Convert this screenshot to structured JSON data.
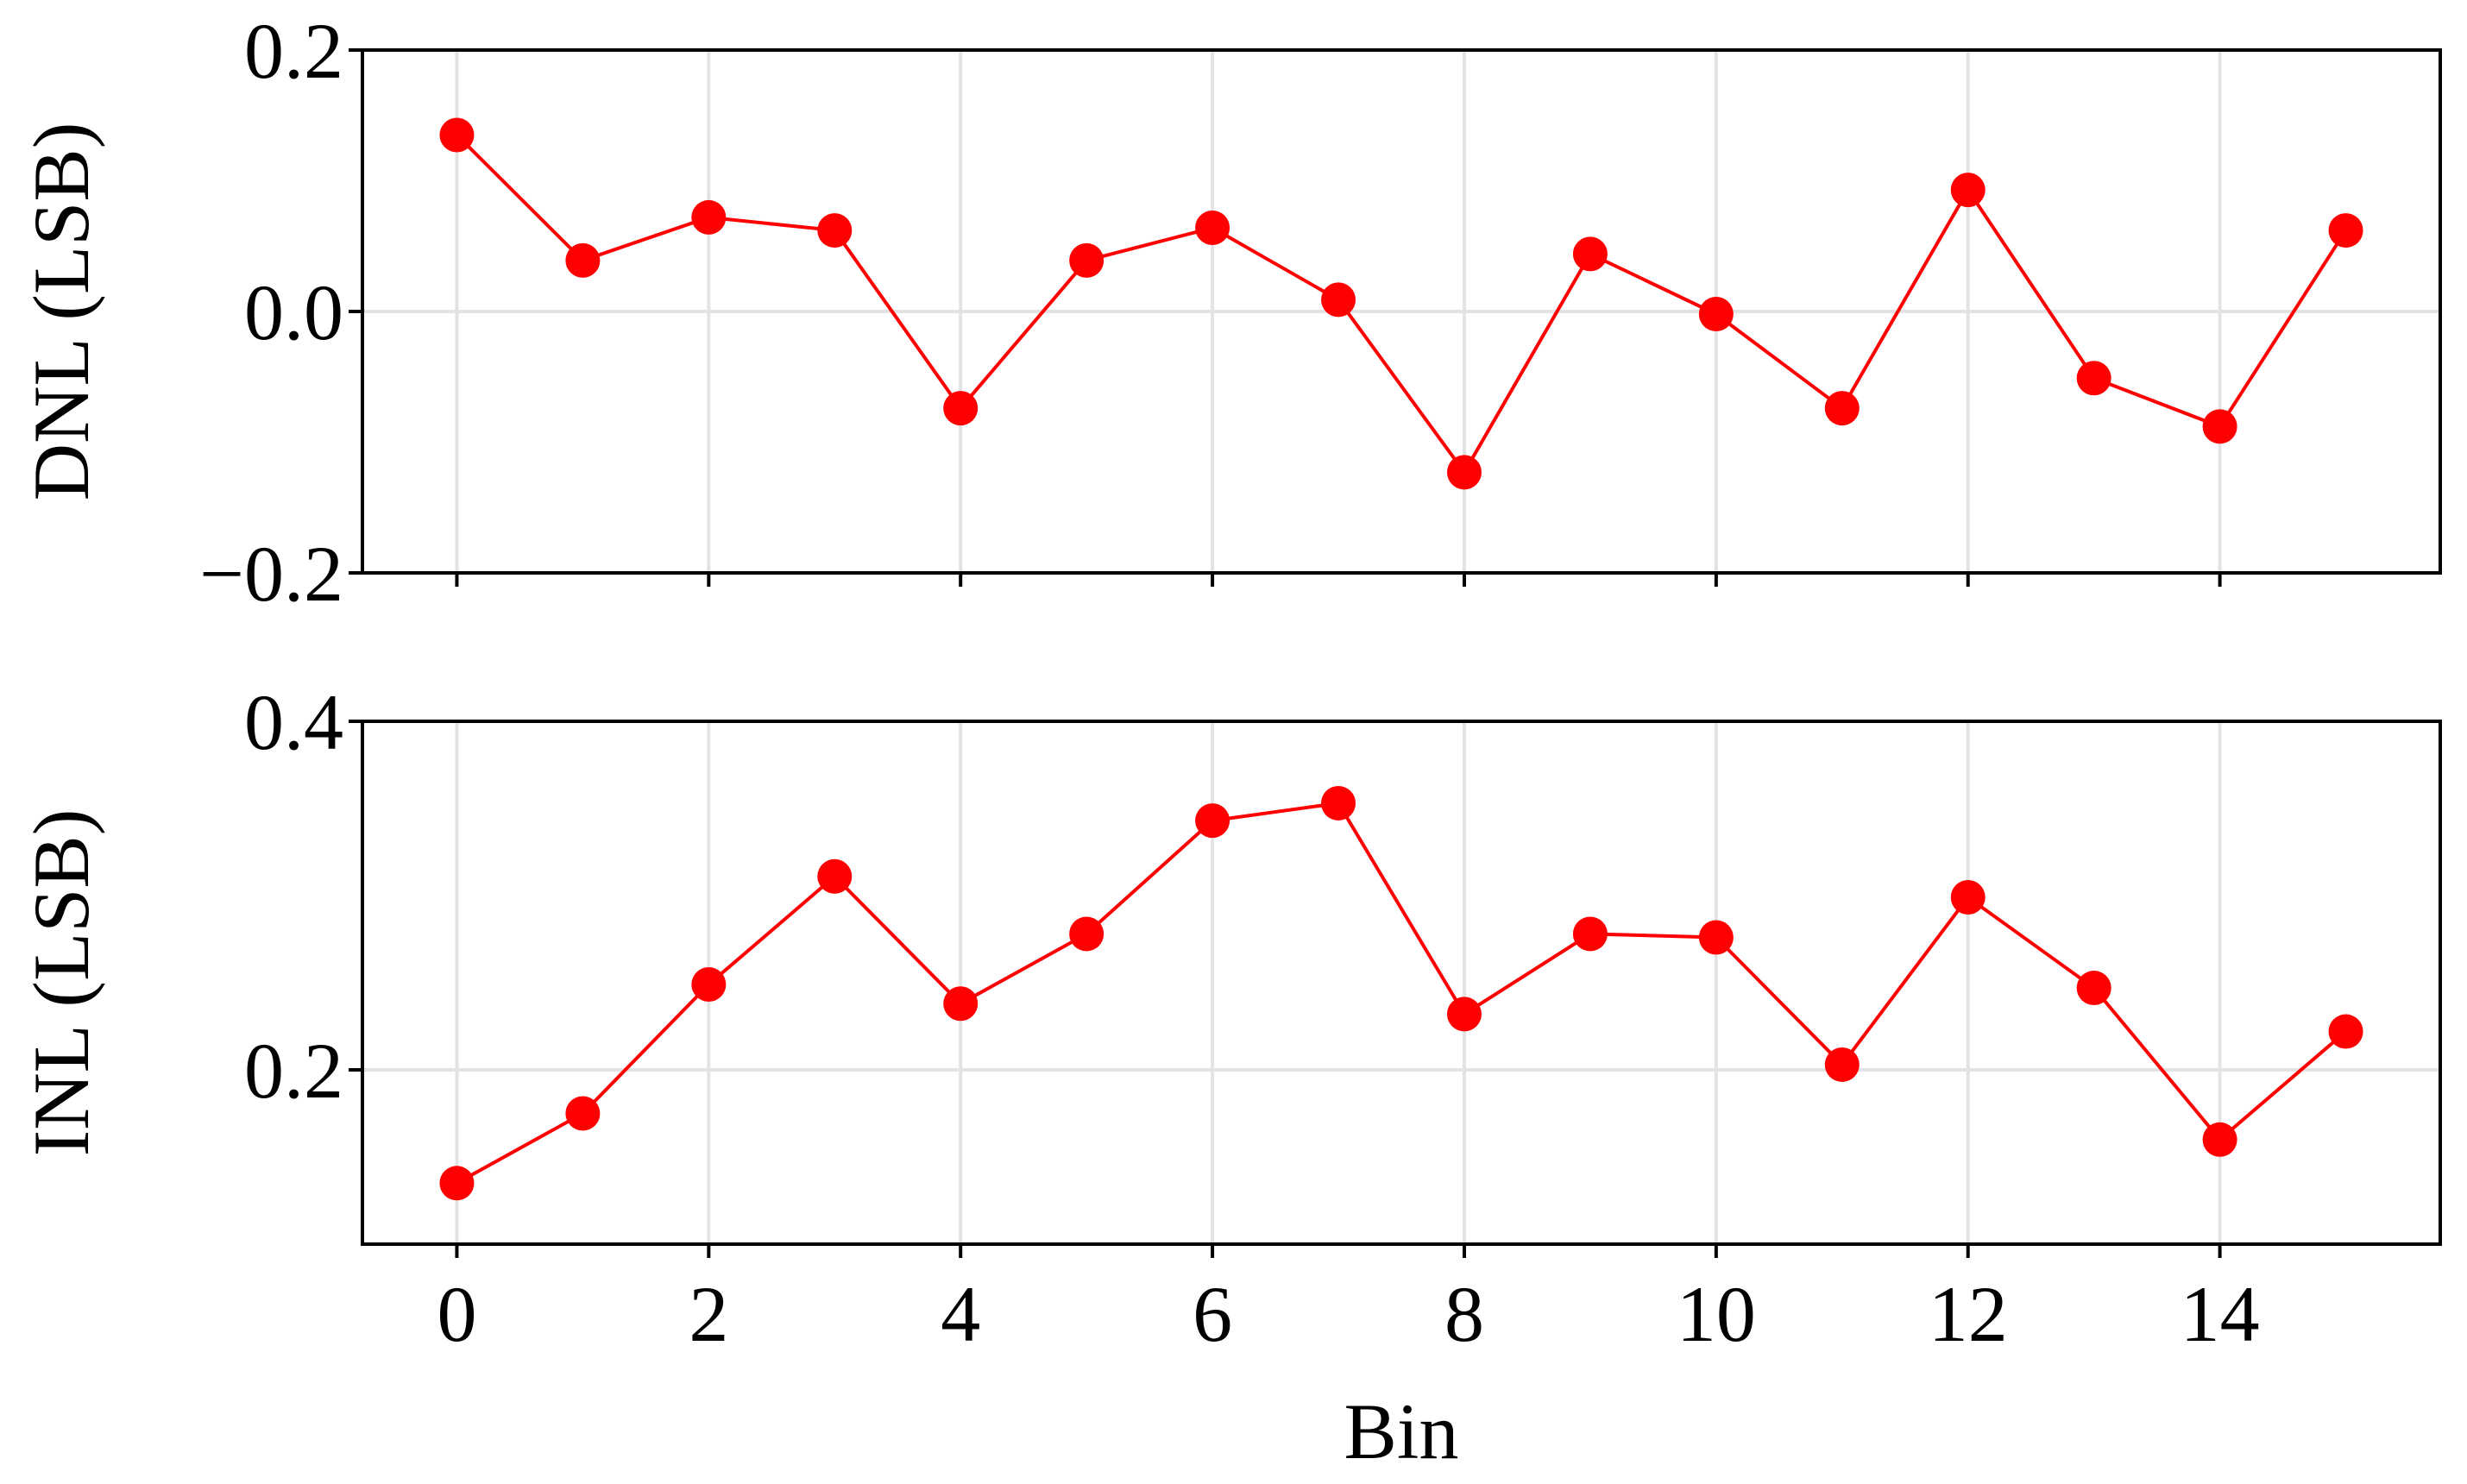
{
  "colors": {
    "series": "#ff0000",
    "grid": "#e3e3e3",
    "axes": "#000000",
    "background": "#ffffff"
  },
  "chart_data": [
    {
      "type": "line",
      "name": "dnl-panel",
      "title": "",
      "xlabel": "",
      "ylabel": "DNL (LSB)",
      "xlim": [
        -0.75,
        15.75
      ],
      "ylim": [
        -0.2,
        0.2
      ],
      "x_ticks": [
        0,
        2,
        4,
        6,
        8,
        10,
        12,
        14
      ],
      "x_tick_labels_shown": false,
      "y_ticks": [
        0.2,
        0.0,
        -0.2
      ],
      "y_tick_labels": [
        "0.2",
        "0.0",
        "−0.2"
      ],
      "grid": true,
      "marker": "circle",
      "x": [
        0,
        1,
        2,
        3,
        4,
        5,
        6,
        7,
        8,
        9,
        10,
        11,
        12,
        13,
        14,
        15
      ],
      "values": [
        0.135,
        0.039,
        0.072,
        0.062,
        -0.074,
        0.039,
        0.064,
        0.009,
        -0.123,
        0.044,
        -0.002,
        -0.074,
        0.093,
        -0.051,
        -0.088,
        0.062
      ]
    },
    {
      "type": "line",
      "name": "inl-panel",
      "title": "",
      "xlabel": "Bin",
      "ylabel": "INL (LSB)",
      "xlim": [
        -0.75,
        15.75
      ],
      "ylim": [
        0.1,
        0.4
      ],
      "x_ticks": [
        0,
        2,
        4,
        6,
        8,
        10,
        12,
        14
      ],
      "x_tick_labels": [
        "0",
        "2",
        "4",
        "6",
        "8",
        "10",
        "12",
        "14"
      ],
      "x_tick_labels_shown": true,
      "y_ticks": [
        0.4,
        0.2
      ],
      "y_tick_labels": [
        "0.4",
        "0.2"
      ],
      "grid": true,
      "marker": "circle",
      "x": [
        0,
        1,
        2,
        3,
        4,
        5,
        6,
        7,
        8,
        9,
        10,
        11,
        12,
        13,
        14,
        15
      ],
      "values": [
        0.135,
        0.175,
        0.249,
        0.311,
        0.238,
        0.278,
        0.343,
        0.353,
        0.232,
        0.278,
        0.276,
        0.203,
        0.299,
        0.247,
        0.16,
        0.222
      ]
    }
  ]
}
